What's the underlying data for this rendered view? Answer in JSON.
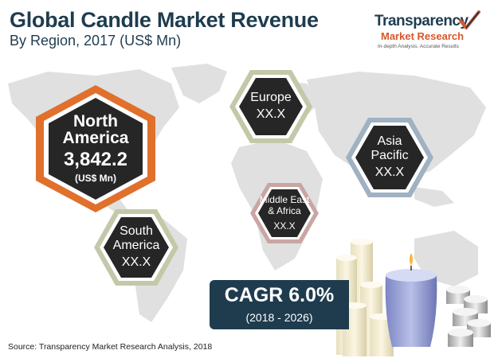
{
  "header": {
    "title": "Global Candle Market Revenue",
    "subtitle": "By Region, 2017 (US$ Mn)"
  },
  "logo": {
    "line1": "Transparency",
    "line2": "Market Research",
    "tagline": "In-depth Analysis. Accurate Results"
  },
  "regions": {
    "north_america": {
      "name_line1": "North",
      "name_line2": "America",
      "value": "3,842.2",
      "unit": "(US$ Mn)"
    },
    "europe": {
      "name": "Europe",
      "value": "XX.X"
    },
    "asia_pacific": {
      "name_line1": "Asia",
      "name_line2": "Pacific",
      "value": "XX.X"
    },
    "middle_east_africa": {
      "name_line1": "Middle East",
      "name_line2": "& Africa",
      "value": "XX.X"
    },
    "south_america": {
      "name_line1": "South",
      "name_line2": "America",
      "value": "XX.X"
    }
  },
  "cagr": {
    "label": "CAGR 6.0%",
    "period": "(2018 - 2026)"
  },
  "source": "Source: Transparency Market Research Analysis, 2018",
  "colors": {
    "navy": "#1f3c4f",
    "orange": "#e0702b",
    "hex_dark": "#262626",
    "europe_accent": "#c4c8a8",
    "asia_accent": "#9fb1c2",
    "mea_accent": "#c9a5a3",
    "sa_accent": "#c4c8a8",
    "map_gray": "#e0e0e0"
  }
}
